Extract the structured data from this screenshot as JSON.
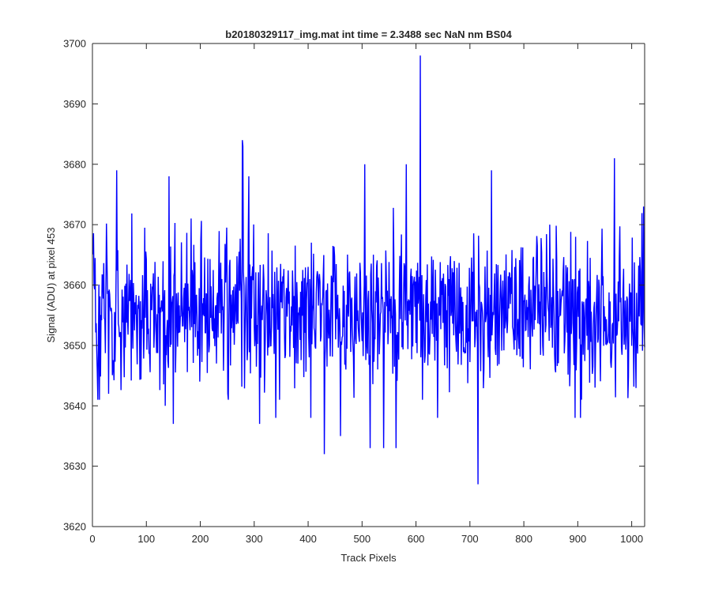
{
  "chart_data": {
    "type": "line",
    "title": "b20180329117_img.mat int time = 2.3488 sec  NaN nm BS04",
    "xlabel": "Track Pixels",
    "ylabel": "Signal (ADU) at pixel 453",
    "xlim": [
      0,
      1024
    ],
    "ylim": [
      3620,
      3700
    ],
    "xticks": [
      0,
      100,
      200,
      300,
      400,
      500,
      600,
      700,
      800,
      900,
      1000
    ],
    "yticks": [
      3620,
      3630,
      3640,
      3650,
      3660,
      3670,
      3680,
      3690,
      3700
    ],
    "grid": false,
    "box": true,
    "series": [
      {
        "color": "#0000ff",
        "x_start": 1,
        "x_step": 1,
        "n_points": 1024,
        "baseline": 3656,
        "noise_sd": 6,
        "spikes": [
          {
            "x": 13,
            "y": 3641
          },
          {
            "x": 30,
            "y": 3642
          },
          {
            "x": 45,
            "y": 3679
          },
          {
            "x": 135,
            "y": 3640
          },
          {
            "x": 142,
            "y": 3678
          },
          {
            "x": 150,
            "y": 3637
          },
          {
            "x": 278,
            "y": 3684
          },
          {
            "x": 279,
            "y": 3683
          },
          {
            "x": 290,
            "y": 3678
          },
          {
            "x": 310,
            "y": 3637
          },
          {
            "x": 340,
            "y": 3638
          },
          {
            "x": 405,
            "y": 3638
          },
          {
            "x": 430,
            "y": 3632
          },
          {
            "x": 460,
            "y": 3635
          },
          {
            "x": 505,
            "y": 3680
          },
          {
            "x": 515,
            "y": 3633
          },
          {
            "x": 540,
            "y": 3633
          },
          {
            "x": 563,
            "y": 3633
          },
          {
            "x": 582,
            "y": 3680
          },
          {
            "x": 608,
            "y": 3698
          },
          {
            "x": 640,
            "y": 3638
          },
          {
            "x": 715,
            "y": 3627
          },
          {
            "x": 740,
            "y": 3679
          },
          {
            "x": 895,
            "y": 3638
          },
          {
            "x": 905,
            "y": 3638
          },
          {
            "x": 968,
            "y": 3681
          },
          {
            "x": 1022,
            "y": 3673
          }
        ]
      }
    ]
  }
}
